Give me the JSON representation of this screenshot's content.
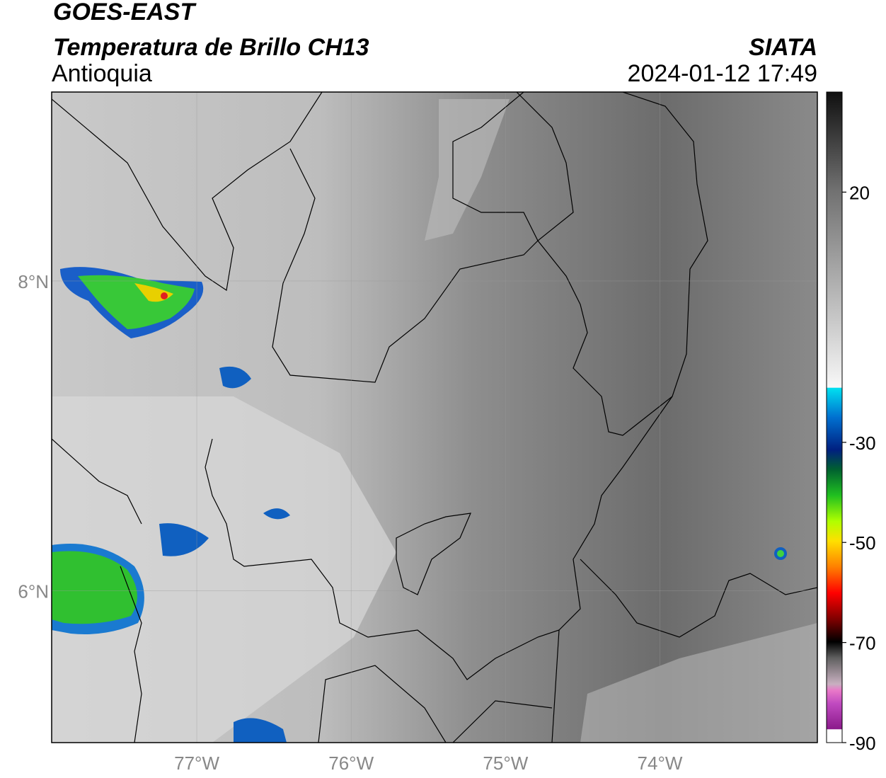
{
  "header": {
    "title": "GOES-EAST",
    "subtitle": "Temperatura de Brillo CH13",
    "region": "Antioquia",
    "source": "SIATA",
    "datetime": "2024-01-12 17:49"
  },
  "map": {
    "xlim": [
      -77.94,
      -72.98
    ],
    "ylim": [
      5.02,
      9.22
    ],
    "xticks": [
      {
        "value": -77,
        "label": "77°W"
      },
      {
        "value": -76,
        "label": "76°W"
      },
      {
        "value": -75,
        "label": "75°W"
      },
      {
        "value": -74,
        "label": "74°W"
      }
    ],
    "yticks": [
      {
        "value": 6,
        "label": "6°N"
      },
      {
        "value": 8,
        "label": "8°N"
      }
    ],
    "grid": true
  },
  "colorbar": {
    "clim": [
      -90,
      40
    ],
    "ticks": [
      20,
      -30,
      -50,
      -70,
      -90
    ]
  }
}
